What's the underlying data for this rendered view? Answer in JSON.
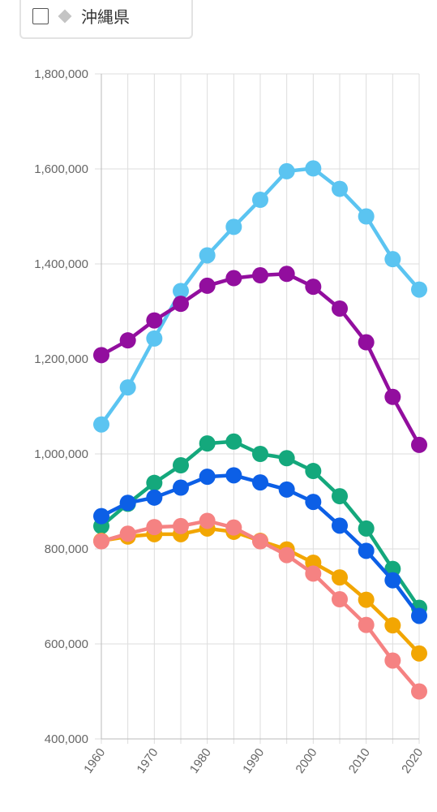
{
  "legend": {
    "items": [
      {
        "label": "沖縄県",
        "checked": false,
        "marker_color": "#c4c4c4",
        "marker_shape": "diamond"
      }
    ]
  },
  "chart_data": {
    "type": "line",
    "x": [
      1960,
      1965,
      1970,
      1975,
      1980,
      1985,
      1990,
      1995,
      2000,
      2005,
      2010,
      2015,
      2020
    ],
    "ylim": [
      400000,
      1800000
    ],
    "yticks": [
      400000,
      600000,
      800000,
      1000000,
      1200000,
      1400000,
      1600000,
      1800000
    ],
    "ytick_labels": [
      "400,000",
      "600,000",
      "800,000",
      "1,000,000",
      "1,200,000",
      "1,400,000",
      "1,600,000",
      "1,800,000"
    ],
    "xtick_labels": [
      "1960",
      "1970",
      "1980",
      "1990",
      "2000",
      "2010",
      "2020"
    ],
    "xticks": [
      1960,
      1970,
      1980,
      1990,
      2000,
      2010,
      2020
    ],
    "grid": true,
    "series": [
      {
        "color": "#5bc4f1",
        "values": [
          1062000,
          1140000,
          1243000,
          1343000,
          1418000,
          1478000,
          1535000,
          1595000,
          1601000,
          1558000,
          1500000,
          1410000,
          1346000
        ]
      },
      {
        "color": "#920e9e",
        "values": [
          1208000,
          1239000,
          1281000,
          1316000,
          1354000,
          1370000,
          1376000,
          1379000,
          1352000,
          1306000,
          1235000,
          1120000,
          1019000
        ]
      },
      {
        "color": "#14a87c",
        "values": [
          848000,
          895000,
          939000,
          976000,
          1022000,
          1026000,
          1000000,
          991000,
          964000,
          911000,
          843000,
          758000,
          676000
        ]
      },
      {
        "color": "#0c5fe6",
        "values": [
          869000,
          897000,
          908000,
          929000,
          952000,
          955000,
          940000,
          925000,
          899000,
          849000,
          796000,
          734000,
          659000
        ]
      },
      {
        "color": "#f2a602",
        "values": [
          817000,
          826000,
          831000,
          831000,
          843000,
          836000,
          817000,
          799000,
          771000,
          740000,
          693000,
          639000,
          580000
        ]
      },
      {
        "color": "#f58282",
        "values": [
          816000,
          832000,
          846000,
          848000,
          859000,
          845000,
          816000,
          787000,
          748000,
          694000,
          640000,
          565000,
          500000
        ]
      }
    ]
  }
}
